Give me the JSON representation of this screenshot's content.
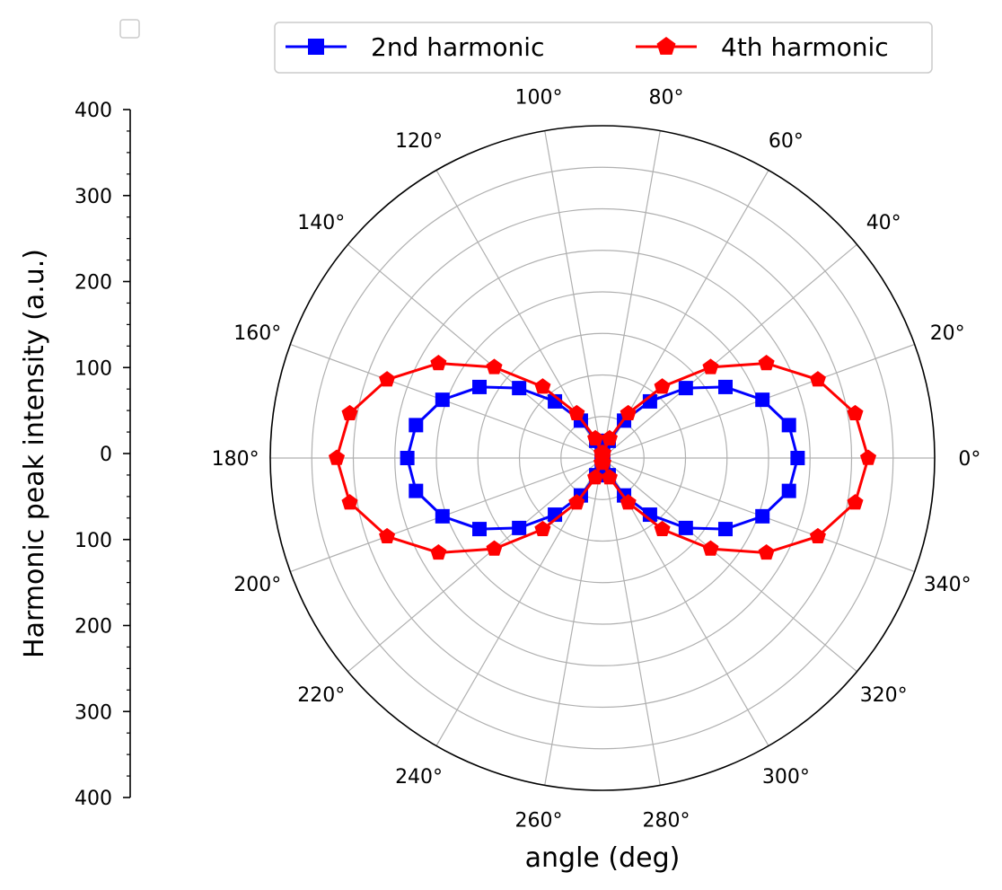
{
  "chart_data": {
    "type": "polar-line",
    "xlabel": "angle (deg)",
    "ylabel": "Harmonic peak intensity (a.u.)",
    "radial_range": [
      0,
      400
    ],
    "radial_gridlines": [
      50,
      100,
      150,
      200,
      250,
      300,
      350,
      400
    ],
    "angle_ticks": [
      "0°",
      "20°",
      "40°",
      "60°",
      "80°",
      "100°",
      "120°",
      "140°",
      "160°",
      "180°",
      "200°",
      "220°",
      "240°",
      "260°",
      "280°",
      "300°",
      "320°",
      "340°"
    ],
    "angle_tick_values": [
      0,
      20,
      40,
      60,
      80,
      100,
      120,
      140,
      160,
      180,
      200,
      220,
      240,
      260,
      280,
      300,
      320,
      340
    ],
    "side_axis_ticks": [
      "400",
      "300",
      "200",
      "100",
      "0",
      "100",
      "200",
      "300",
      "400"
    ],
    "grid": true,
    "legend_position": "top",
    "empty_legend_box": true,
    "series": [
      {
        "name": "2nd harmonic",
        "color": "#0000ff",
        "marker": "square",
        "angles": [
          0,
          10,
          20,
          30,
          40,
          50,
          60,
          70,
          80,
          90,
          100,
          110,
          120,
          130,
          140,
          150,
          160,
          170,
          180,
          190,
          200,
          210,
          220,
          230,
          240,
          250,
          260,
          270,
          280,
          290,
          300,
          310,
          320,
          330,
          340,
          350
        ],
        "values": [
          235,
          228,
          205,
          171,
          131,
          89,
          52,
          22,
          5,
          0,
          5,
          22,
          52,
          89,
          131,
          171,
          205,
          228,
          235,
          228,
          205,
          171,
          131,
          89,
          52,
          22,
          5,
          0,
          5,
          22,
          52,
          89,
          131,
          171,
          205,
          228
        ]
      },
      {
        "name": "4th harmonic",
        "color": "#ff0000",
        "marker": "pentagon",
        "angles": [
          0,
          10,
          20,
          30,
          40,
          50,
          60,
          70,
          80,
          90,
          100,
          110,
          120,
          130,
          140,
          150,
          160,
          170,
          180,
          190,
          200,
          210,
          220,
          230,
          240,
          250,
          260,
          270,
          280,
          290,
          300,
          310,
          320,
          330,
          340,
          350
        ],
        "values": [
          320,
          309,
          276,
          228,
          170,
          112,
          62,
          25,
          6,
          0,
          6,
          25,
          62,
          112,
          170,
          228,
          276,
          309,
          320,
          309,
          276,
          228,
          170,
          112,
          62,
          25,
          6,
          0,
          6,
          25,
          62,
          112,
          170,
          228,
          276,
          309
        ]
      }
    ]
  }
}
